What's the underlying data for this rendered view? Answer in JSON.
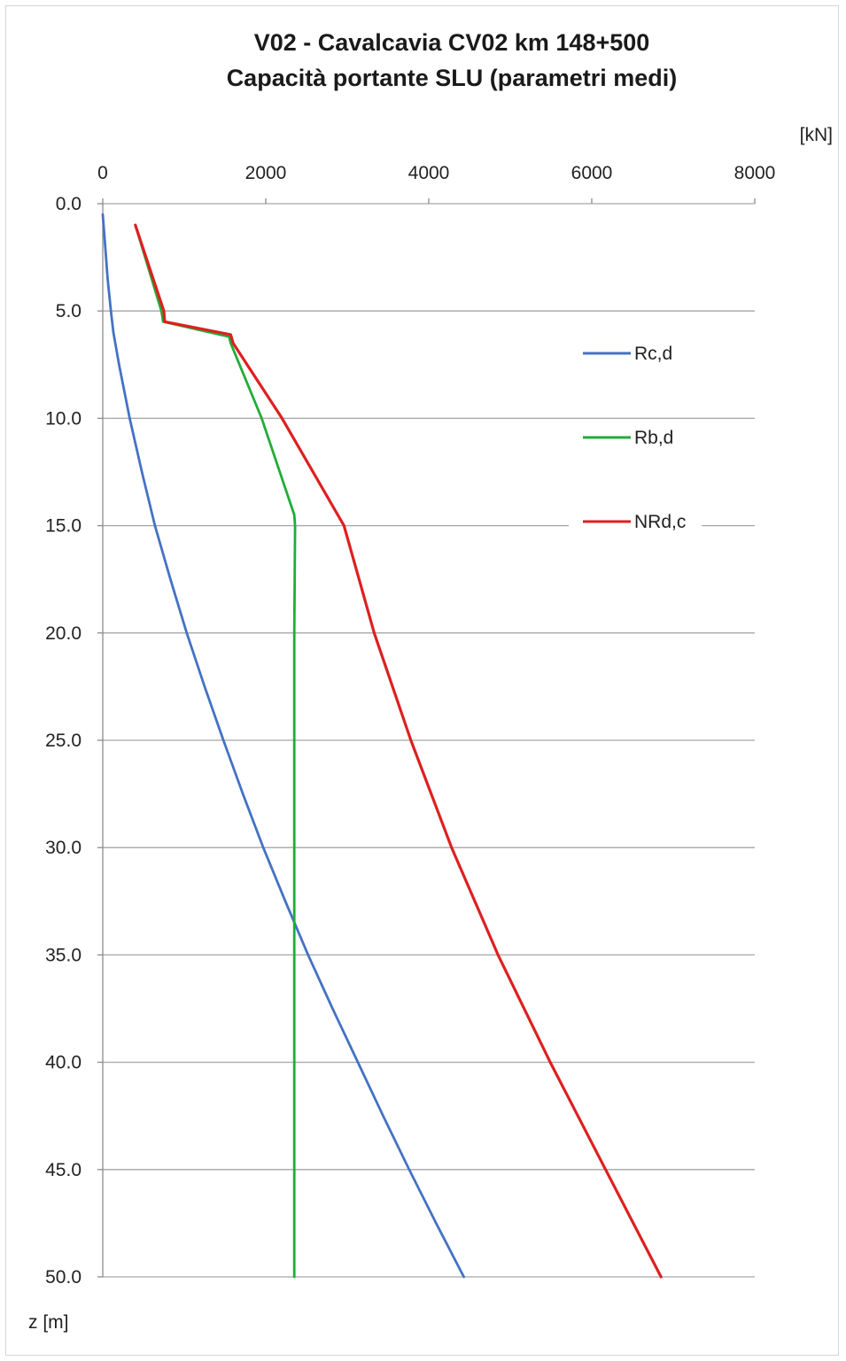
{
  "chart_data": {
    "type": "line",
    "title": "V02 - Cavalcavia CV02 km 148+500",
    "subtitle": "Capacità portante SLU (parametri medi)",
    "xlabel": "[kN]",
    "ylabel": "z [m]",
    "xlim": [
      0,
      8000
    ],
    "ylim": [
      0,
      50
    ],
    "y_inverted": true,
    "x_axis_position": "top",
    "x_ticks": [
      "0",
      "2000",
      "4000",
      "6000",
      "8000"
    ],
    "y_ticks": [
      "0.0",
      "5.0",
      "10.0",
      "15.0",
      "20.0",
      "25.0",
      "30.0",
      "35.0",
      "40.0",
      "45.0",
      "50.0"
    ],
    "grid": "horizontal",
    "legend_position": "right",
    "series": [
      {
        "name": "Rc,d",
        "color": "#4472c4",
        "points": [
          [
            0,
            0.5
          ],
          [
            30,
            2
          ],
          [
            60,
            3.5
          ],
          [
            100,
            5
          ],
          [
            130,
            6
          ],
          [
            200,
            7.5
          ],
          [
            330,
            10
          ],
          [
            480,
            12.5
          ],
          [
            640,
            15
          ],
          [
            830,
            17.5
          ],
          [
            1030,
            20
          ],
          [
            1250,
            22.5
          ],
          [
            1480,
            25
          ],
          [
            1720,
            27.5
          ],
          [
            1970,
            30
          ],
          [
            2240,
            32.5
          ],
          [
            2520,
            35
          ],
          [
            2820,
            37.5
          ],
          [
            3130,
            40
          ],
          [
            3440,
            42.5
          ],
          [
            3760,
            45
          ],
          [
            4090,
            47.5
          ],
          [
            4430,
            50
          ]
        ]
      },
      {
        "name": "Rb,d",
        "color": "#22ac38",
        "points": [
          [
            400,
            1
          ],
          [
            720,
            5
          ],
          [
            740,
            5.5
          ],
          [
            1550,
            6.2
          ],
          [
            1570,
            6.5
          ],
          [
            1950,
            10
          ],
          [
            2350,
            14.5
          ],
          [
            2360,
            15
          ],
          [
            2350,
            20
          ],
          [
            2350,
            30
          ],
          [
            2350,
            40
          ],
          [
            2350,
            50
          ]
        ]
      },
      {
        "name": "NRd,c",
        "color": "#dd2020",
        "points": [
          [
            400,
            1
          ],
          [
            750,
            5
          ],
          [
            760,
            5.5
          ],
          [
            1570,
            6.1
          ],
          [
            1600,
            6.5
          ],
          [
            2200,
            10
          ],
          [
            2960,
            15
          ],
          [
            3330,
            20
          ],
          [
            3780,
            25
          ],
          [
            4280,
            30
          ],
          [
            4850,
            35
          ],
          [
            5490,
            40
          ],
          [
            6170,
            45
          ],
          [
            6850,
            50
          ]
        ]
      }
    ]
  }
}
